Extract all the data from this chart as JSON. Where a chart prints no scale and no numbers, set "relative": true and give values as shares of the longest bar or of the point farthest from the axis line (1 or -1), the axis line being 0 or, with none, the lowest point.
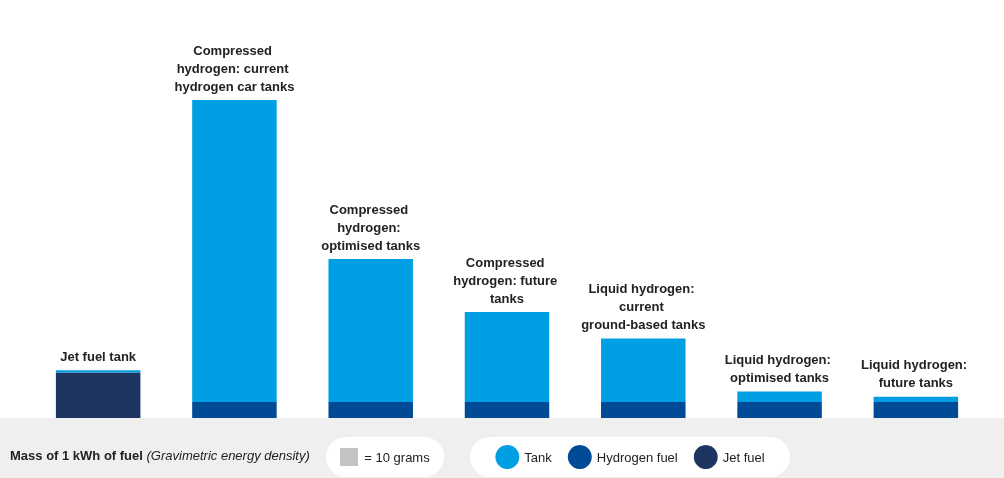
{
  "chart_data": {
    "type": "bar",
    "stacked": true,
    "relative": true,
    "categories": [
      "Jet fuel tank",
      "Compressed hydrogen: current hydrogen car tanks",
      "Compressed hydrogen: optimised tanks",
      "Compressed hydrogen: future tanks",
      "Liquid hydrogen: current ground-based tanks",
      "Liquid hydrogen: optimised tanks",
      "Liquid hydrogen: future tanks"
    ],
    "series": [
      {
        "name": "Jet fuel",
        "color": "#1d3560",
        "values": [
          0.143,
          0,
          0,
          0,
          0,
          0,
          0
        ]
      },
      {
        "name": "Hydrogen fuel",
        "color": "#004a96",
        "values": [
          0,
          0.05,
          0.05,
          0.05,
          0.05,
          0.05,
          0.05
        ]
      },
      {
        "name": "Tank",
        "color": "#009fe3",
        "values": [
          0.007,
          0.95,
          0.45,
          0.283,
          0.2,
          0.033,
          0.017
        ]
      }
    ],
    "xlabel": "Mass of 1 kWh of fuel",
    "annotations": [
      "(Gravimetric energy density)",
      "= 10 grams"
    ],
    "legend": "bottom"
  }
}
